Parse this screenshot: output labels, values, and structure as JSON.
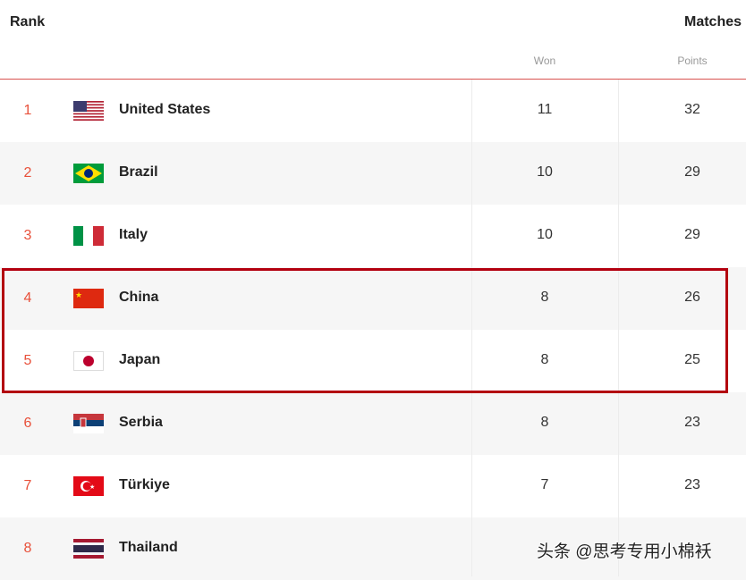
{
  "header": {
    "rank": "Rank",
    "matches": "Matches",
    "won": "Won",
    "points": "Points"
  },
  "colors": {
    "rank": "#e8503a",
    "highlight_box": "#b3000f"
  },
  "rows": [
    {
      "rank": "1",
      "country": "United States",
      "flag": "us-flag",
      "won": "11",
      "points": "32"
    },
    {
      "rank": "2",
      "country": "Brazil",
      "flag": "brazil-flag",
      "won": "10",
      "points": "29"
    },
    {
      "rank": "3",
      "country": "Italy",
      "flag": "italy-flag",
      "won": "10",
      "points": "29"
    },
    {
      "rank": "4",
      "country": "China",
      "flag": "china-flag",
      "won": "8",
      "points": "26"
    },
    {
      "rank": "5",
      "country": "Japan",
      "flag": "japan-flag",
      "won": "8",
      "points": "25"
    },
    {
      "rank": "6",
      "country": "Serbia",
      "flag": "serbia-flag",
      "won": "8",
      "points": "23"
    },
    {
      "rank": "7",
      "country": "Türkiye",
      "flag": "turkiye-flag",
      "won": "7",
      "points": "23"
    },
    {
      "rank": "8",
      "country": "Thailand",
      "flag": "thailand-flag"
    }
  ],
  "watermark": "头条 @思考专用小棉袄"
}
